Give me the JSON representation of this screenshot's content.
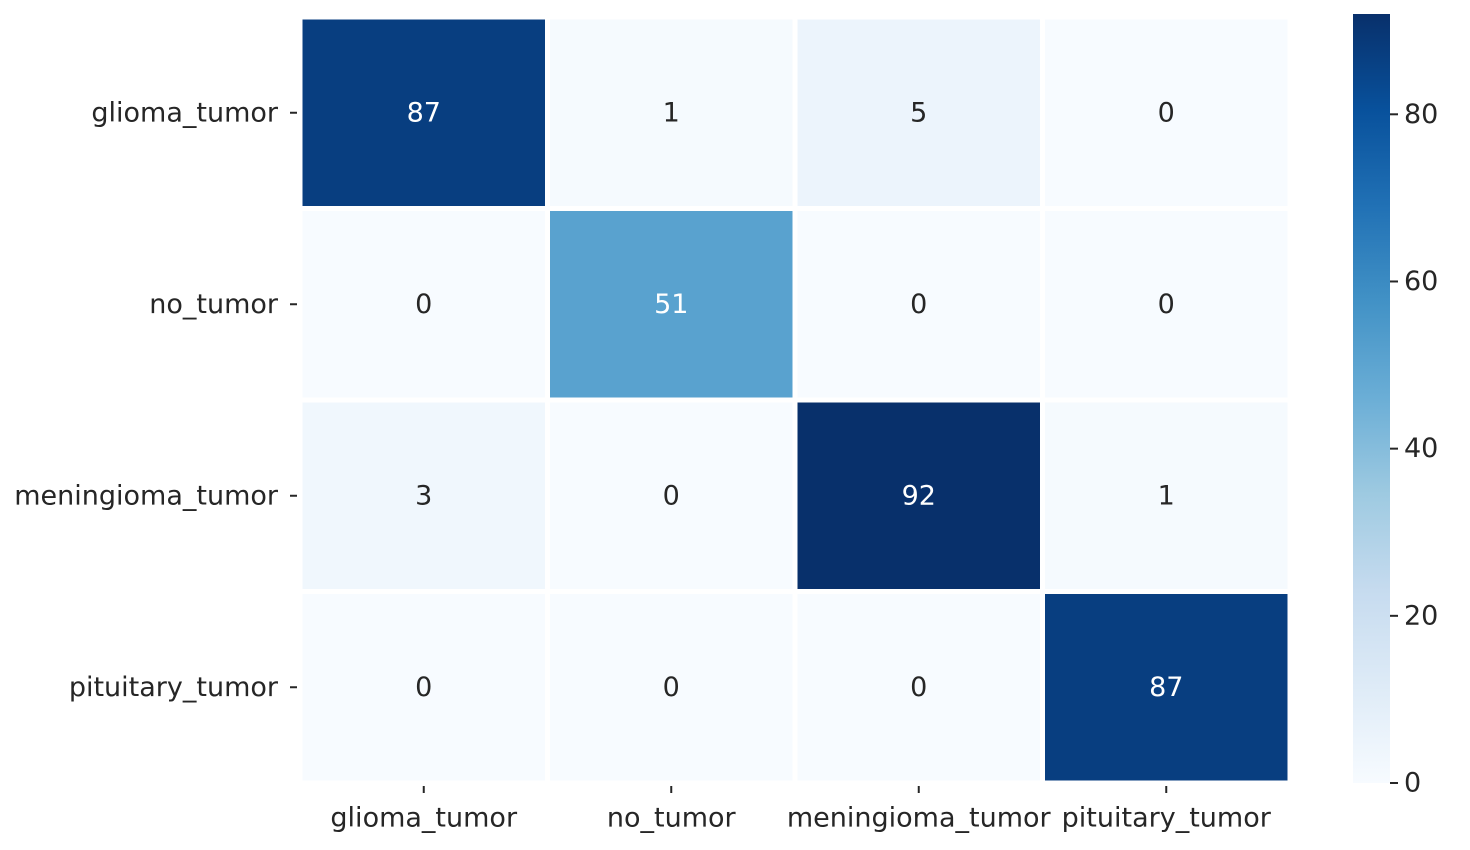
{
  "chart_data": {
    "type": "heatmap",
    "title": "",
    "xlabel": "",
    "ylabel": "",
    "row_labels": [
      "glioma_tumor",
      "no_tumor",
      "meningioma_tumor",
      "pituitary_tumor"
    ],
    "column_labels": [
      "glioma_tumor",
      "no_tumor",
      "meningioma_tumor",
      "pituitary_tumor"
    ],
    "values": [
      [
        87,
        1,
        5,
        0
      ],
      [
        0,
        51,
        0,
        0
      ],
      [
        3,
        0,
        92,
        1
      ],
      [
        0,
        0,
        0,
        87
      ]
    ],
    "colormap": "Blues",
    "colorbar": {
      "min": 0,
      "max": 92,
      "ticks": [
        0,
        20,
        40,
        60,
        80
      ],
      "tick_labels": [
        "0",
        "20",
        "40",
        "60",
        "80"
      ]
    },
    "annotations": true,
    "grid_lines": "white"
  }
}
